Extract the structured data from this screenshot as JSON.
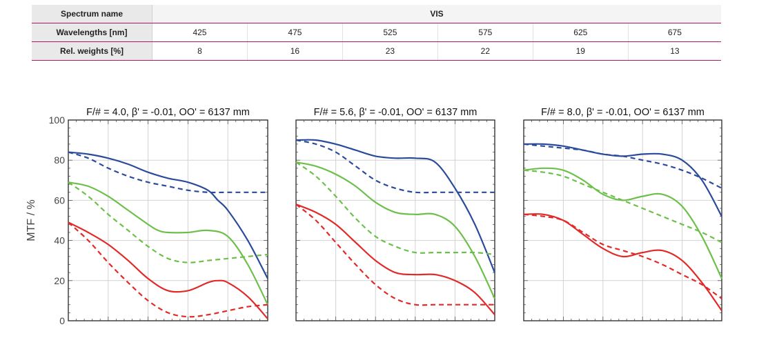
{
  "table": {
    "spectrum_label": "Spectrum name",
    "spectrum_value": "VIS",
    "wavelengths_label": "Wavelengths [nm]",
    "wavelengths": [
      "425",
      "475",
      "525",
      "575",
      "625",
      "675"
    ],
    "weights_label": "Rel. weights [%]",
    "weights": [
      "8",
      "16",
      "23",
      "22",
      "19",
      "13"
    ]
  },
  "chart_data": [
    {
      "type": "line",
      "title": "F/# = 4.0, β' = -0.01, OO' = 6137 mm",
      "ylabel": "MTF / %",
      "ylim": [
        0,
        100
      ],
      "yticks": [
        "0",
        "20",
        "40",
        "60",
        "80",
        "100"
      ],
      "xlim": [
        0,
        1
      ],
      "grid": true,
      "series": [
        {
          "color": "#2a4a9c",
          "style": "solid",
          "x": [
            0,
            0.1,
            0.2,
            0.3,
            0.4,
            0.5,
            0.6,
            0.7,
            0.75,
            0.8,
            0.9,
            1.0
          ],
          "y": [
            84,
            83,
            81,
            78,
            74,
            71,
            69,
            65,
            60,
            55,
            40,
            21
          ]
        },
        {
          "color": "#2a4a9c",
          "style": "dashed",
          "x": [
            0,
            0.1,
            0.2,
            0.3,
            0.4,
            0.5,
            0.6,
            0.7,
            0.8,
            0.9,
            1.0
          ],
          "y": [
            84,
            81,
            76,
            72,
            69,
            67,
            65,
            64,
            64,
            64,
            64
          ]
        },
        {
          "color": "#6cc04a",
          "style": "solid",
          "x": [
            0,
            0.1,
            0.2,
            0.3,
            0.4,
            0.45,
            0.5,
            0.6,
            0.7,
            0.8,
            0.9,
            1.0
          ],
          "y": [
            69,
            67,
            62,
            55,
            48,
            45,
            44,
            44,
            45,
            42,
            28,
            8
          ]
        },
        {
          "color": "#6cc04a",
          "style": "dashed",
          "x": [
            0,
            0.1,
            0.2,
            0.3,
            0.4,
            0.5,
            0.6,
            0.7,
            0.8,
            0.9,
            1.0
          ],
          "y": [
            69,
            62,
            53,
            45,
            37,
            31,
            29,
            30,
            31,
            32,
            33
          ]
        },
        {
          "color": "#e12a27",
          "style": "solid",
          "x": [
            0,
            0.1,
            0.2,
            0.3,
            0.4,
            0.5,
            0.6,
            0.7,
            0.75,
            0.8,
            0.9,
            1.0
          ],
          "y": [
            49,
            44,
            38,
            30,
            21,
            15,
            15,
            19,
            20,
            19,
            12,
            1
          ]
        },
        {
          "color": "#e12a27",
          "style": "dashed",
          "x": [
            0,
            0.1,
            0.2,
            0.3,
            0.4,
            0.5,
            0.6,
            0.7,
            0.8,
            0.9,
            1.0
          ],
          "y": [
            49,
            40,
            29,
            19,
            10,
            4,
            2,
            3,
            5,
            7,
            8
          ]
        }
      ]
    },
    {
      "type": "line",
      "title": "F/# = 5.6, β' = -0.01, OO' = 6137 mm",
      "ylabel": "MTF / %",
      "ylim": [
        0,
        100
      ],
      "yticks": [
        "0",
        "20",
        "40",
        "60",
        "80",
        "100"
      ],
      "xlim": [
        0,
        1
      ],
      "grid": true,
      "series": [
        {
          "color": "#2a4a9c",
          "style": "solid",
          "x": [
            0,
            0.1,
            0.2,
            0.3,
            0.4,
            0.5,
            0.6,
            0.7,
            0.8,
            0.9,
            1.0
          ],
          "y": [
            90,
            90,
            88,
            85,
            82,
            81,
            81,
            79,
            66,
            48,
            24
          ]
        },
        {
          "color": "#2a4a9c",
          "style": "dashed",
          "x": [
            0,
            0.1,
            0.2,
            0.3,
            0.4,
            0.5,
            0.6,
            0.7,
            0.8,
            0.9,
            1.0
          ],
          "y": [
            90,
            88,
            84,
            77,
            70,
            66,
            64,
            64,
            64,
            64,
            64
          ]
        },
        {
          "color": "#6cc04a",
          "style": "solid",
          "x": [
            0,
            0.1,
            0.2,
            0.3,
            0.4,
            0.5,
            0.6,
            0.7,
            0.8,
            0.9,
            1.0
          ],
          "y": [
            79,
            77,
            73,
            67,
            59,
            54,
            53,
            53,
            47,
            32,
            11
          ]
        },
        {
          "color": "#6cc04a",
          "style": "dashed",
          "x": [
            0,
            0.1,
            0.2,
            0.3,
            0.4,
            0.5,
            0.6,
            0.7,
            0.8,
            0.9,
            1.0
          ],
          "y": [
            79,
            72,
            62,
            51,
            42,
            37,
            34,
            34,
            34,
            34,
            33
          ]
        },
        {
          "color": "#e12a27",
          "style": "solid",
          "x": [
            0,
            0.1,
            0.2,
            0.3,
            0.4,
            0.5,
            0.6,
            0.7,
            0.8,
            0.9,
            1.0
          ],
          "y": [
            58,
            54,
            48,
            39,
            30,
            24,
            23,
            23,
            20,
            14,
            3
          ]
        },
        {
          "color": "#e12a27",
          "style": "dashed",
          "x": [
            0,
            0.1,
            0.2,
            0.3,
            0.4,
            0.5,
            0.6,
            0.7,
            0.8,
            0.9,
            1.0
          ],
          "y": [
            58,
            50,
            39,
            28,
            18,
            11,
            8,
            8,
            8,
            8,
            8
          ]
        }
      ]
    },
    {
      "type": "line",
      "title": "F/# = 8.0, β' = -0.01, OO' = 6137 mm",
      "ylabel": "MTF / %",
      "ylim": [
        0,
        100
      ],
      "yticks": [
        "0",
        "20",
        "40",
        "60",
        "80",
        "100"
      ],
      "xlim": [
        0,
        1
      ],
      "grid": true,
      "series": [
        {
          "color": "#2a4a9c",
          "style": "solid",
          "x": [
            0,
            0.1,
            0.2,
            0.3,
            0.4,
            0.5,
            0.6,
            0.7,
            0.8,
            0.9,
            1.0
          ],
          "y": [
            88,
            88,
            87,
            85,
            83,
            82,
            83,
            83,
            80,
            70,
            52
          ]
        },
        {
          "color": "#2a4a9c",
          "style": "dashed",
          "x": [
            0,
            0.1,
            0.2,
            0.3,
            0.4,
            0.5,
            0.6,
            0.7,
            0.8,
            0.9,
            1.0
          ],
          "y": [
            88,
            87,
            86,
            85,
            83,
            82,
            80,
            78,
            75,
            71,
            66
          ]
        },
        {
          "color": "#6cc04a",
          "style": "solid",
          "x": [
            0,
            0.1,
            0.2,
            0.3,
            0.4,
            0.5,
            0.6,
            0.7,
            0.8,
            0.9,
            1.0
          ],
          "y": [
            75,
            76,
            75,
            70,
            63,
            60,
            62,
            63,
            57,
            42,
            21
          ]
        },
        {
          "color": "#6cc04a",
          "style": "dashed",
          "x": [
            0,
            0.1,
            0.2,
            0.3,
            0.4,
            0.5,
            0.6,
            0.7,
            0.8,
            0.9,
            1.0
          ],
          "y": [
            75,
            74,
            72,
            68,
            64,
            60,
            56,
            52,
            48,
            44,
            39
          ]
        },
        {
          "color": "#e12a27",
          "style": "solid",
          "x": [
            0,
            0.1,
            0.2,
            0.3,
            0.4,
            0.5,
            0.6,
            0.7,
            0.8,
            0.9,
            1.0
          ],
          "y": [
            53,
            53,
            50,
            43,
            36,
            32,
            34,
            35,
            30,
            19,
            5
          ]
        },
        {
          "color": "#e12a27",
          "style": "dashed",
          "x": [
            0,
            0.1,
            0.2,
            0.3,
            0.4,
            0.5,
            0.6,
            0.7,
            0.8,
            0.9,
            1.0
          ],
          "y": [
            53,
            52,
            50,
            44,
            38,
            35,
            32,
            28,
            23,
            18,
            11
          ]
        }
      ]
    }
  ]
}
